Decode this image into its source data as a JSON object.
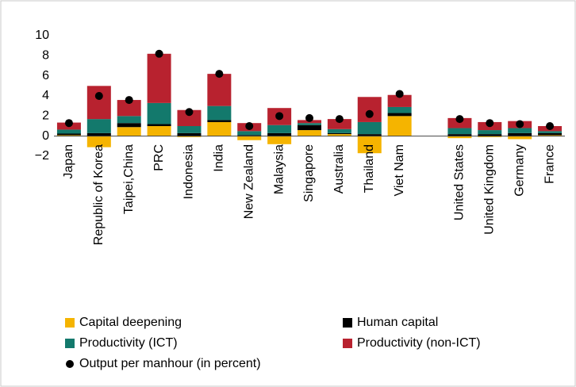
{
  "chart_data": {
    "type": "bar",
    "stacked": true,
    "categories": [
      "Japan",
      "Republic of Korea",
      "Taipei,China",
      "PRC",
      "Indonesia",
      "India",
      "New Zealand",
      "Malaysia",
      "Singapore",
      "Australia",
      "Thailand",
      "Viet Nam",
      null,
      "United States",
      "United Kingdom",
      "Germany",
      "France"
    ],
    "series": [
      {
        "name": "Capital deepening",
        "color": "#f5b400",
        "values": [
          0.1,
          -1.1,
          0.9,
          1.0,
          -0.1,
          1.4,
          -0.4,
          -0.8,
          0.6,
          0.2,
          -1.7,
          2.0,
          null,
          -0.2,
          -0.1,
          -0.3,
          0.1
        ]
      },
      {
        "name": "Human capital",
        "color": "#000000",
        "values": [
          0.15,
          0.3,
          0.4,
          0.2,
          0.3,
          0.2,
          0.1,
          0.3,
          0.5,
          0.1,
          0.2,
          0.3,
          null,
          0.2,
          0.2,
          0.3,
          0.2
        ]
      },
      {
        "name": "Productivity (ICT)",
        "color": "#13796c",
        "values": [
          0.4,
          1.4,
          0.7,
          2.1,
          0.7,
          1.4,
          0.4,
          0.8,
          0.2,
          0.4,
          1.2,
          0.6,
          null,
          0.6,
          0.4,
          0.5,
          0.2
        ]
      },
      {
        "name": "Productivity (non-ICT)",
        "color": "#b8222f",
        "values": [
          0.7,
          3.3,
          1.6,
          4.9,
          1.6,
          3.2,
          0.8,
          1.7,
          0.3,
          1.0,
          2.5,
          1.2,
          null,
          1.0,
          0.8,
          0.7,
          0.5
        ]
      }
    ],
    "output": {
      "name": "Output per manhour (in percent)",
      "color": "#000000",
      "values": [
        1.3,
        4.0,
        3.6,
        8.2,
        2.4,
        6.2,
        1.0,
        2.0,
        1.8,
        1.7,
        2.2,
        4.2,
        null,
        1.7,
        1.3,
        1.2,
        1.0
      ]
    },
    "ylim": [
      -2,
      10
    ],
    "yticks": [
      {
        "value": -2,
        "label": "−2"
      },
      0,
      2,
      4,
      6,
      8,
      10
    ],
    "grid": false
  }
}
